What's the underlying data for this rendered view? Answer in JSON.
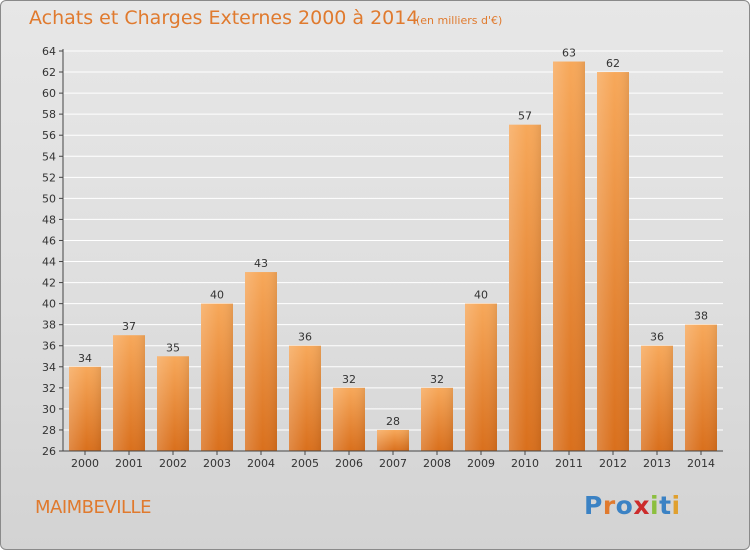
{
  "header": {
    "title": "Achats et Charges Externes 2000 à 2014",
    "subtitle": "(en milliers d'€)"
  },
  "footer": {
    "commune": "MAIMBEVILLE",
    "logo": "Proxiti",
    "logo_colors": [
      "#3b82c4",
      "#e07a2e",
      "#3b82c4",
      "#cc2b2b",
      "#8cbf3f",
      "#3b82c4",
      "#e0a02e"
    ]
  },
  "colors": {
    "bar_top": "#f7a85a",
    "bar_bottom": "#d96f1c",
    "axis": "#444444",
    "grid": "#ffffff",
    "text": "#333333",
    "accent": "#e07a2e"
  },
  "chart_data": {
    "type": "bar",
    "title": "Achats et Charges Externes 2000 à 2014",
    "subtitle": "(en milliers d'€)",
    "categories": [
      "2000",
      "2001",
      "2002",
      "2003",
      "2004",
      "2005",
      "2006",
      "2007",
      "2008",
      "2009",
      "2010",
      "2011",
      "2012",
      "2013",
      "2014"
    ],
    "values": [
      34,
      37,
      35,
      40,
      43,
      36,
      32,
      28,
      32,
      40,
      57,
      63,
      62,
      36,
      38
    ],
    "ylim": [
      26,
      64
    ],
    "ytick_step": 2,
    "grid": true,
    "data_labels": true,
    "xlabel": "",
    "ylabel": ""
  }
}
